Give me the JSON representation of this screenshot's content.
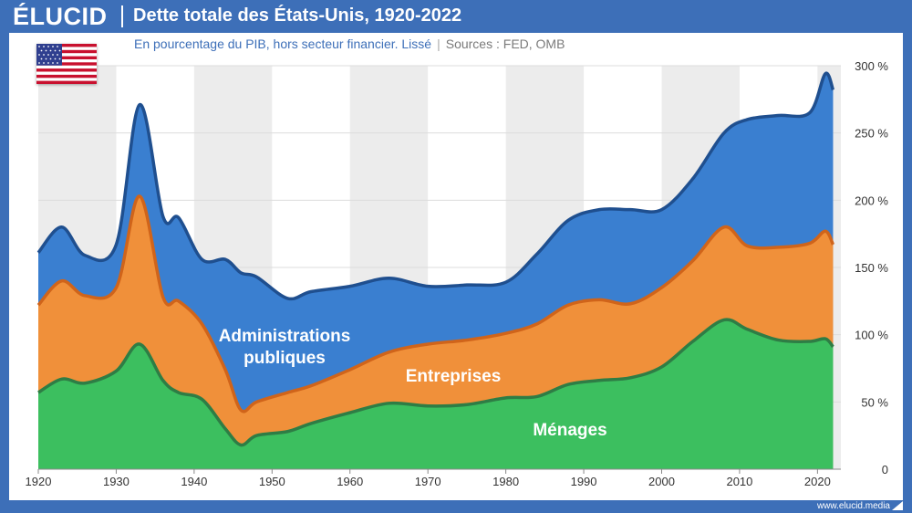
{
  "brand": "ÉLUCID",
  "title": "Dette totale des États-Unis, 1920-2022",
  "subtitle": "En pourcentage du PIB, hors secteur financier. Lissé",
  "sources": "Sources : FED, OMB",
  "footer": "www.elucid.media",
  "colors": {
    "menages": "#3cbf5f",
    "entreprises": "#f0903a",
    "administrations": "#3a7fd0",
    "bg": "#3d6fb8"
  },
  "chart_data": {
    "type": "area",
    "stacked": true,
    "x": [
      1920,
      1923,
      1926,
      1930,
      1933,
      1936,
      1938,
      1941,
      1944,
      1946,
      1948,
      1952,
      1955,
      1960,
      1965,
      1970,
      1975,
      1980,
      1984,
      1988,
      1992,
      1996,
      2000,
      2004,
      2008,
      2011,
      2015,
      2019,
      2021,
      2022
    ],
    "series": [
      {
        "name": "Ménages",
        "values": [
          57,
          67,
          64,
          73,
          93,
          66,
          57,
          52,
          30,
          18,
          25,
          28,
          34,
          42,
          49,
          47,
          48,
          53,
          54,
          63,
          66,
          68,
          76,
          95,
          111,
          104,
          96,
          95,
          97,
          91
        ]
      },
      {
        "name": "Entreprises",
        "values": [
          65,
          73,
          65,
          62,
          110,
          62,
          68,
          56,
          44,
          26,
          25,
          29,
          28,
          32,
          38,
          46,
          48,
          48,
          54,
          59,
          60,
          55,
          59,
          60,
          69,
          62,
          69,
          73,
          80,
          76
        ]
      },
      {
        "name": "Administrations publiques",
        "values": [
          39,
          40,
          30,
          32,
          68,
          60,
          62,
          48,
          82,
          102,
          93,
          70,
          70,
          62,
          55,
          43,
          41,
          38,
          52,
          63,
          67,
          70,
          58,
          61,
          70,
          94,
          98,
          97,
          117,
          115
        ]
      }
    ],
    "x_ticks": [
      1920,
      1930,
      1940,
      1950,
      1960,
      1970,
      1980,
      1990,
      2000,
      2010,
      2020
    ],
    "y_ticks": [
      "0",
      "50 %",
      "100 %",
      "150 %",
      "200 %",
      "250 %",
      "300 %"
    ],
    "xlim": [
      1920,
      2023
    ],
    "ylim": [
      0,
      300
    ],
    "area_labels": {
      "administrations": [
        "Administrations",
        "publiques"
      ],
      "entreprises": "Entreprises",
      "menages": "Ménages"
    }
  }
}
